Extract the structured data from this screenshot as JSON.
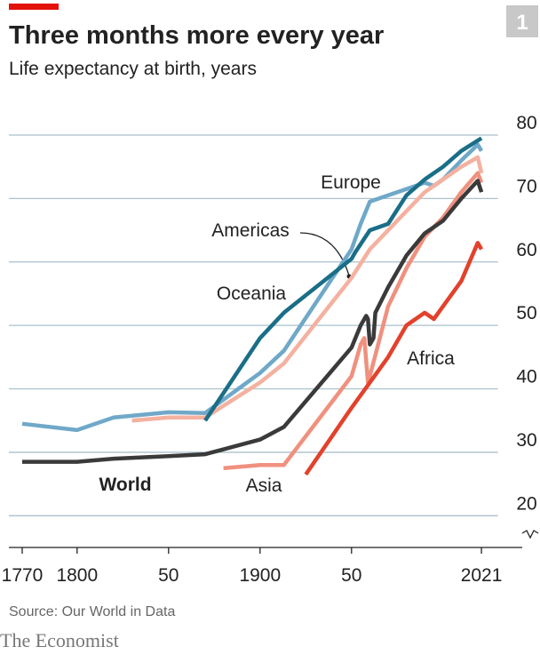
{
  "chart_data": {
    "type": "line",
    "title": "Three months more every year",
    "subtitle": "Life expectancy at birth, years",
    "figure_number": "1",
    "source": "Source: Our World in Data",
    "brand": "The Economist",
    "xlim": [
      1765,
      2030
    ],
    "xticks": [
      1770,
      1800,
      {
        "value": 1850,
        "label": "50"
      },
      1900,
      {
        "value": 1950,
        "label": "50"
      },
      2021
    ],
    "ylim": [
      15,
      82
    ],
    "yticks": [
      20,
      30,
      40,
      50,
      60,
      70,
      80
    ],
    "grid": true,
    "series": [
      {
        "name": "Europe",
        "color": "#6fa8c8",
        "x": [
          1770,
          1800,
          1820,
          1850,
          1870,
          1900,
          1913,
          1950,
          1955,
          1960,
          1970,
          1980,
          1990,
          1995,
          2000,
          2010,
          2019,
          2021
        ],
        "values": [
          34.5,
          33.5,
          35.5,
          36.3,
          36.2,
          42.5,
          46,
          62,
          66,
          69.5,
          70.5,
          71.5,
          72.5,
          72,
          73,
          76,
          78.5,
          77.5
        ]
      },
      {
        "name": "Americas",
        "color": "#f4b19f",
        "x": [
          1830,
          1850,
          1870,
          1900,
          1913,
          1950,
          1960,
          1970,
          1980,
          1990,
          2000,
          2010,
          2019,
          2021
        ],
        "values": [
          35,
          35.5,
          35.5,
          41,
          44,
          57.5,
          62,
          65,
          68,
          71,
          73,
          75,
          76.5,
          74
        ]
      },
      {
        "name": "Oceania",
        "color": "#1a6e87",
        "x": [
          1870,
          1900,
          1913,
          1950,
          1952,
          1960,
          1970,
          1980,
          1990,
          2000,
          2010,
          2021
        ],
        "values": [
          35,
          48,
          52,
          60.5,
          61.5,
          65,
          66,
          70.5,
          73,
          75,
          77.5,
          79.5
        ]
      },
      {
        "name": "Asia",
        "color": "#f0907e",
        "x": [
          1880,
          1900,
          1913,
          1950,
          1955,
          1957,
          1959,
          1960,
          1970,
          1980,
          1990,
          2000,
          2010,
          2019,
          2021
        ],
        "values": [
          27.5,
          28,
          28,
          42,
          47,
          48,
          41,
          42,
          53,
          59,
          64,
          67,
          71,
          74,
          72.5
        ]
      },
      {
        "name": "Africa",
        "color": "#e3412c",
        "x": [
          1925,
          1950,
          1960,
          1970,
          1980,
          1985,
          1990,
          1995,
          2000,
          2010,
          2019,
          2021
        ],
        "values": [
          26.5,
          37,
          41,
          45,
          50,
          51,
          52,
          51,
          53,
          57,
          63,
          62
        ]
      },
      {
        "name": "World",
        "color": "#3a3a3a",
        "x": [
          1770,
          1800,
          1820,
          1850,
          1870,
          1900,
          1913,
          1950,
          1955,
          1958,
          1959,
          1960,
          1962,
          1963,
          1970,
          1980,
          1990,
          2000,
          2010,
          2019,
          2021
        ],
        "values": [
          28.5,
          28.5,
          29,
          29.4,
          29.7,
          32,
          34,
          46.5,
          50,
          51.5,
          51,
          47,
          48,
          52,
          56,
          61,
          64.5,
          66.5,
          70,
          72.8,
          71
        ]
      }
    ]
  }
}
